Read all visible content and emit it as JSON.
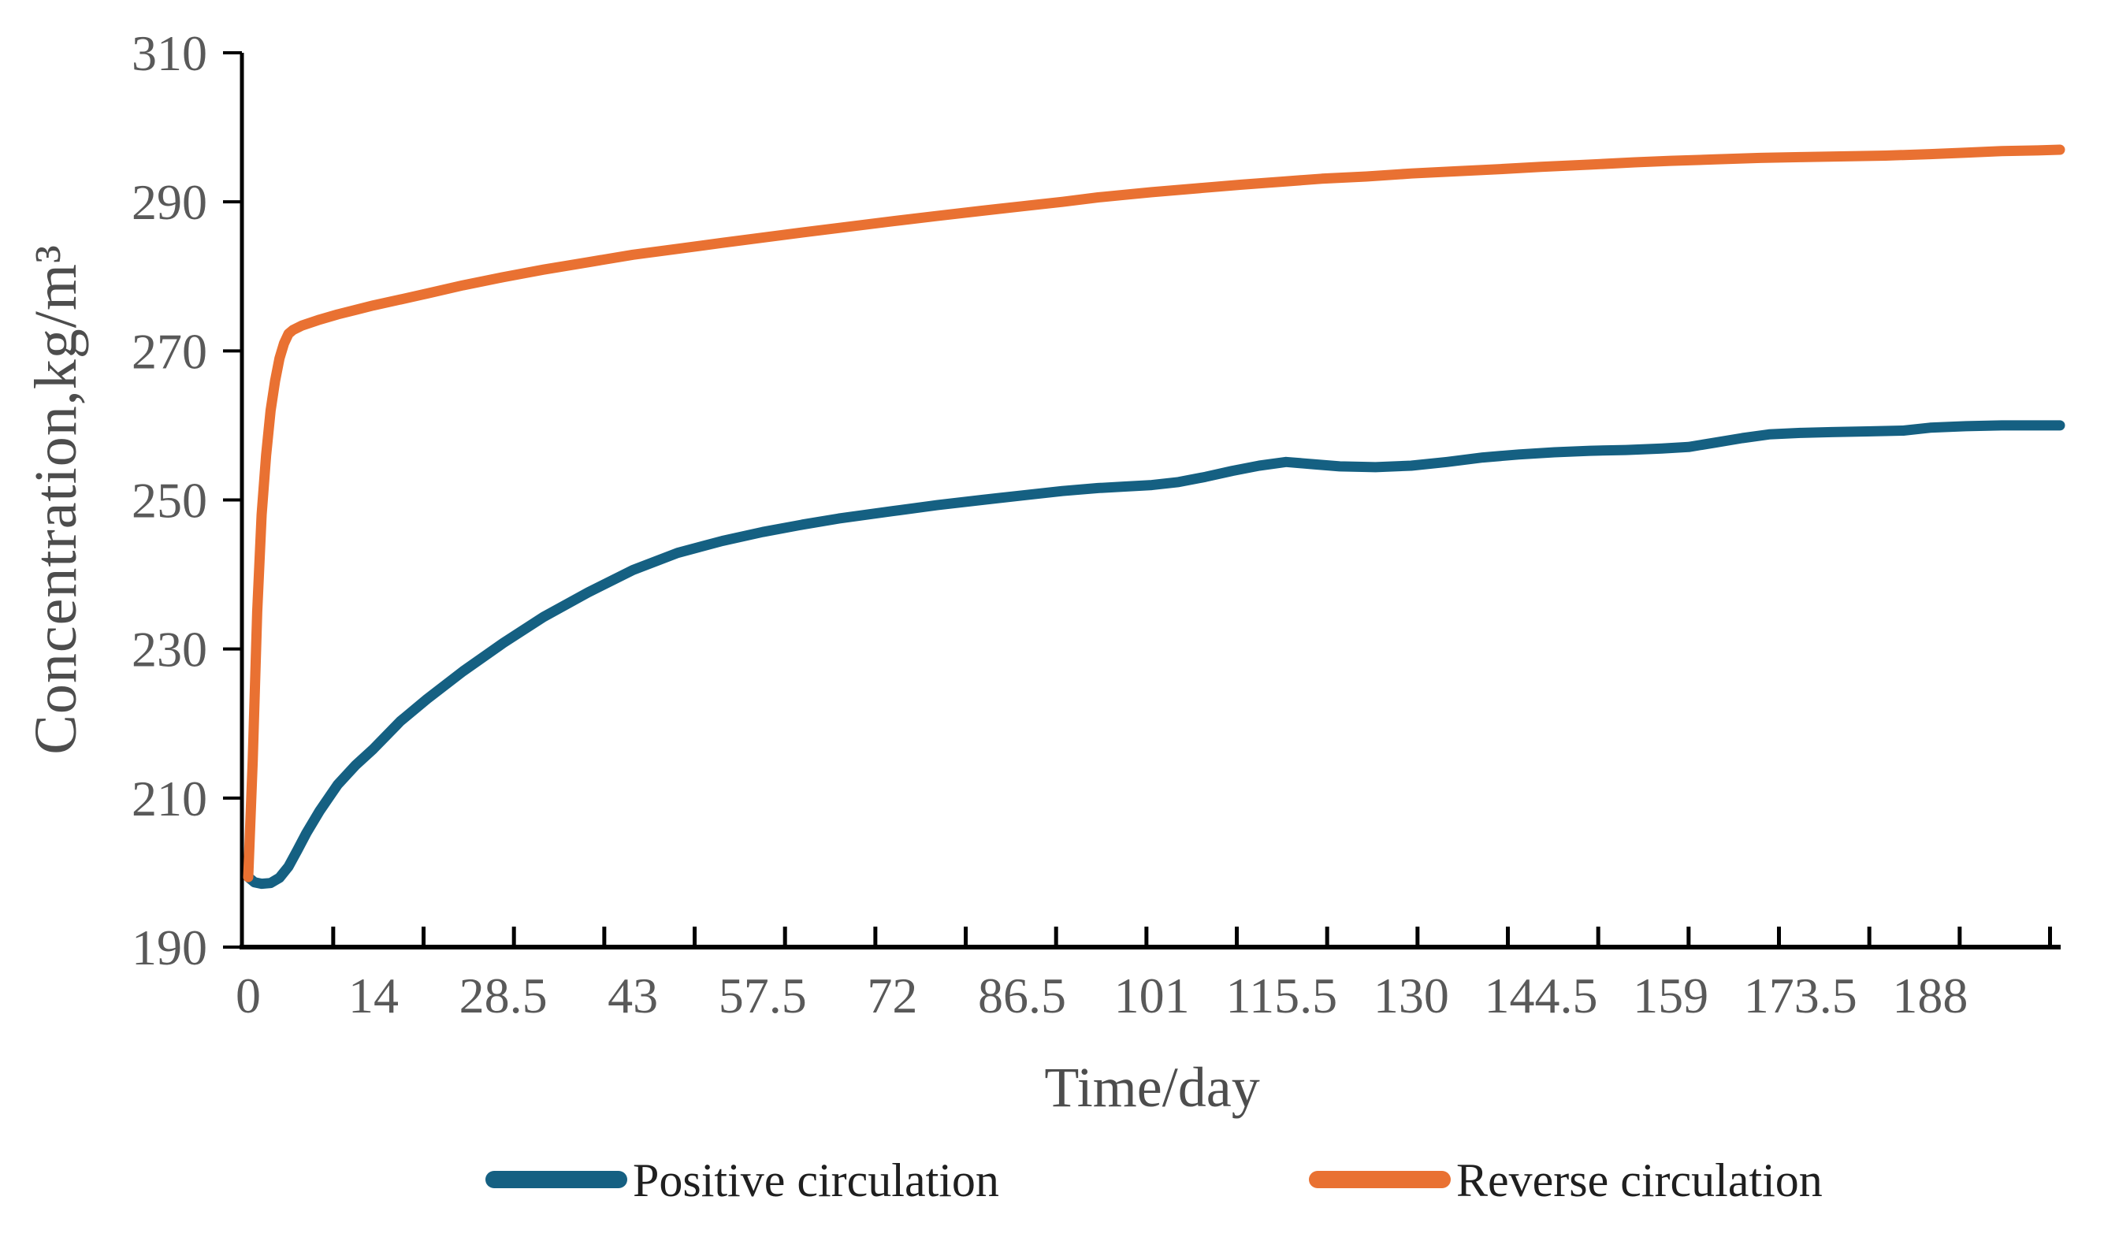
{
  "chart_data": {
    "type": "line",
    "title": "",
    "xlabel": "Time/day",
    "ylabel": "Concentration,kg/m³",
    "x_domain": [
      0,
      202.5
    ],
    "ylim": [
      190,
      310
    ],
    "y_ticks": [
      190,
      210,
      230,
      250,
      270,
      290,
      310
    ],
    "x_tick_labels": [
      "0",
      "14",
      "28.5",
      "43",
      "57.5",
      "72",
      "86.5",
      "101",
      "115.5",
      "130",
      "144.5",
      "159",
      "173.5",
      "188"
    ],
    "x_minor_tick_days": [
      9.5,
      19.6,
      29.7,
      39.8,
      49.9,
      60.0,
      70.1,
      80.2,
      90.3,
      100.4,
      110.5,
      120.6,
      130.7,
      140.8,
      150.9,
      161.0,
      171.1,
      181.2,
      191.3,
      201.4
    ],
    "grid": false,
    "legend_position": "bottom",
    "axis_color": "#000000",
    "tick_label_color": "#595959",
    "title_color": "#4d4d4d",
    "legend_text_color": "#1f1f1f",
    "series": [
      {
        "name": "Positive circulation",
        "color": "#156082",
        "points": [
          [
            0,
            199.4
          ],
          [
            0.7,
            198.7
          ],
          [
            1.5,
            198.5
          ],
          [
            2.5,
            198.6
          ],
          [
            3.5,
            199.3
          ],
          [
            4.5,
            200.8
          ],
          [
            5.5,
            203.0
          ],
          [
            6.5,
            205.3
          ],
          [
            8,
            208.3
          ],
          [
            10,
            211.8
          ],
          [
            12,
            214.4
          ],
          [
            14,
            216.6
          ],
          [
            17,
            220.3
          ],
          [
            20,
            223.3
          ],
          [
            24,
            227.0
          ],
          [
            28.5,
            230.8
          ],
          [
            33,
            234.3
          ],
          [
            38,
            237.6
          ],
          [
            43,
            240.6
          ],
          [
            48,
            242.9
          ],
          [
            53,
            244.5
          ],
          [
            57.5,
            245.7
          ],
          [
            62,
            246.7
          ],
          [
            66,
            247.5
          ],
          [
            72,
            248.5
          ],
          [
            77,
            249.3
          ],
          [
            82,
            250.0
          ],
          [
            86.5,
            250.6
          ],
          [
            91,
            251.2
          ],
          [
            95,
            251.6
          ],
          [
            98,
            251.8
          ],
          [
            101,
            252.0
          ],
          [
            104,
            252.4
          ],
          [
            107,
            253.1
          ],
          [
            110,
            253.9
          ],
          [
            113,
            254.6
          ],
          [
            116,
            255.1
          ],
          [
            119,
            254.8
          ],
          [
            122,
            254.5
          ],
          [
            126,
            254.4
          ],
          [
            130,
            254.6
          ],
          [
            134,
            255.1
          ],
          [
            138,
            255.7
          ],
          [
            142,
            256.1
          ],
          [
            146,
            256.4
          ],
          [
            150,
            256.6
          ],
          [
            154,
            256.7
          ],
          [
            158,
            256.9
          ],
          [
            161,
            257.1
          ],
          [
            164,
            257.7
          ],
          [
            167,
            258.3
          ],
          [
            170,
            258.8
          ],
          [
            173.5,
            259.0
          ],
          [
            177,
            259.1
          ],
          [
            181,
            259.2
          ],
          [
            185,
            259.3
          ],
          [
            188,
            259.7
          ],
          [
            192,
            259.9
          ],
          [
            196,
            260.0
          ],
          [
            202.5,
            260.0
          ]
        ]
      },
      {
        "name": "Reverse circulation",
        "color": "#E97132",
        "points": [
          [
            0,
            199.4
          ],
          [
            0.5,
            215.0
          ],
          [
            1,
            235.0
          ],
          [
            1.5,
            248.0
          ],
          [
            2,
            256.0
          ],
          [
            2.5,
            262.0
          ],
          [
            3,
            266.0
          ],
          [
            3.5,
            269.0
          ],
          [
            4,
            271.0
          ],
          [
            4.5,
            272.3
          ],
          [
            5,
            272.8
          ],
          [
            6,
            273.4
          ],
          [
            8,
            274.2
          ],
          [
            10,
            274.9
          ],
          [
            12,
            275.5
          ],
          [
            14,
            276.1
          ],
          [
            17,
            276.9
          ],
          [
            20,
            277.7
          ],
          [
            24,
            278.8
          ],
          [
            28.5,
            279.9
          ],
          [
            33,
            280.9
          ],
          [
            38,
            281.9
          ],
          [
            43,
            282.9
          ],
          [
            48,
            283.7
          ],
          [
            53,
            284.5
          ],
          [
            57.5,
            285.2
          ],
          [
            62,
            285.9
          ],
          [
            66,
            286.5
          ],
          [
            72,
            287.4
          ],
          [
            77,
            288.1
          ],
          [
            82,
            288.8
          ],
          [
            86.5,
            289.4
          ],
          [
            91,
            290.0
          ],
          [
            95,
            290.6
          ],
          [
            101,
            291.3
          ],
          [
            106,
            291.8
          ],
          [
            111,
            292.3
          ],
          [
            115.5,
            292.7
          ],
          [
            120,
            293.1
          ],
          [
            125,
            293.4
          ],
          [
            130,
            293.8
          ],
          [
            135,
            294.1
          ],
          [
            140,
            294.4
          ],
          [
            144.5,
            294.7
          ],
          [
            150,
            295.0
          ],
          [
            155,
            295.3
          ],
          [
            159,
            295.5
          ],
          [
            164,
            295.7
          ],
          [
            169,
            295.9
          ],
          [
            173.5,
            296.0
          ],
          [
            178,
            296.1
          ],
          [
            183,
            296.2
          ],
          [
            188,
            296.4
          ],
          [
            192,
            296.6
          ],
          [
            196,
            296.8
          ],
          [
            200,
            296.9
          ],
          [
            202.5,
            297.0
          ]
        ]
      }
    ]
  }
}
